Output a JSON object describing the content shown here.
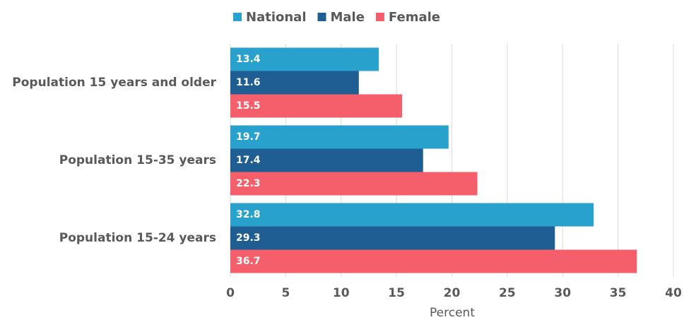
{
  "chart_data": {
    "type": "hbar",
    "categories": [
      "Population 15 years and older",
      "Population 15-35 years",
      "Population 15-24 years"
    ],
    "series": [
      {
        "name": "National",
        "color": "#28a2cc",
        "values": [
          13.4,
          19.7,
          32.8
        ]
      },
      {
        "name": "Male",
        "color": "#1f5e93",
        "values": [
          11.6,
          17.4,
          29.3
        ]
      },
      {
        "name": "Female",
        "color": "#f45f6b",
        "values": [
          15.5,
          22.3,
          36.7
        ]
      }
    ],
    "x_label": "Percent",
    "xlim": [
      0,
      40
    ],
    "xticks": [
      0,
      5,
      10,
      15,
      20,
      25,
      30,
      35,
      40
    ],
    "grid": true,
    "legend": "top"
  }
}
